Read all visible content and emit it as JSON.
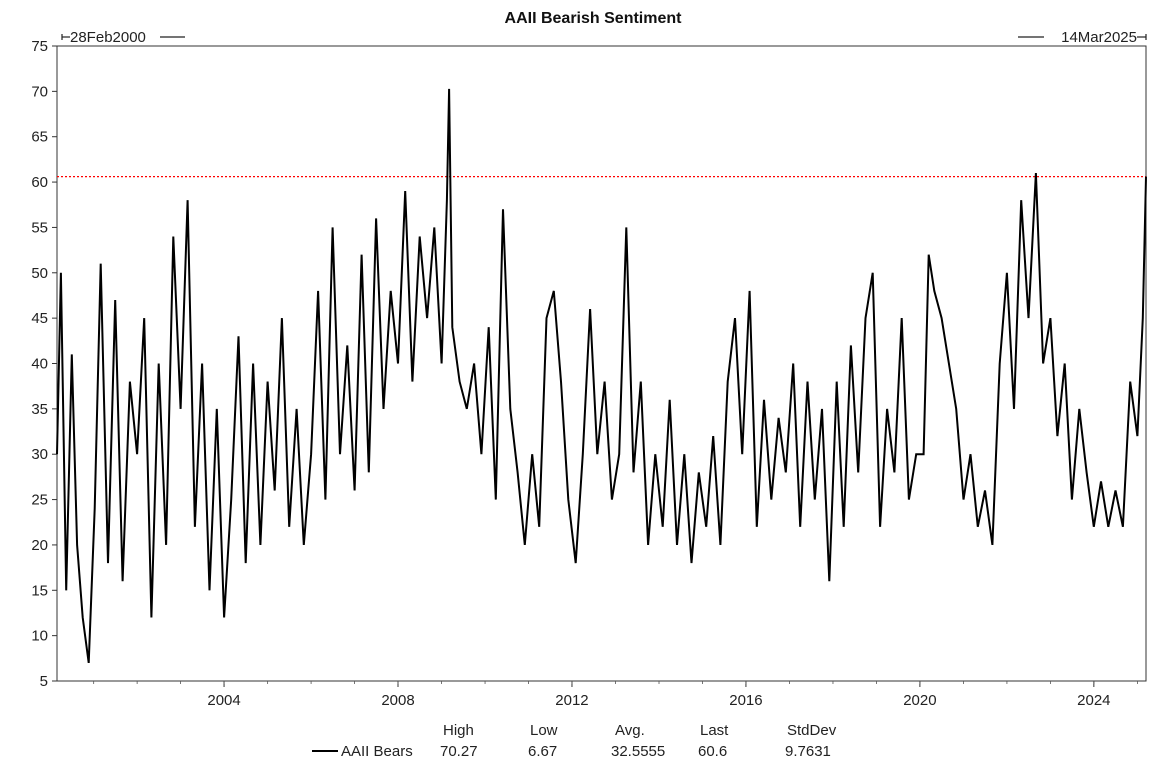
{
  "chart_data": {
    "type": "line",
    "title": "AAII Bearish Sentiment",
    "start_label": "28Feb2000",
    "end_label": "14Mar2025",
    "xlim": [
      "2000-02-28",
      "2025-03-14"
    ],
    "ylim": [
      5,
      75
    ],
    "y_ticks": [
      "75",
      "70",
      "65",
      "60",
      "55",
      "50",
      "45",
      "40",
      "35",
      "30",
      "25",
      "20",
      "15",
      "10",
      "5"
    ],
    "x_ticks": [
      "2004",
      "2008",
      "2012",
      "2016",
      "2020",
      "2024"
    ],
    "reference_line": {
      "value": 60.6,
      "color": "#ff0000",
      "style": "dotted"
    },
    "line_color": "#000000",
    "series": [
      {
        "name": "AAII Bears",
        "points": [
          [
            "2000-02-28",
            30
          ],
          [
            "2000-04-01",
            50
          ],
          [
            "2000-05-15",
            15
          ],
          [
            "2000-07-01",
            41
          ],
          [
            "2000-08-15",
            20
          ],
          [
            "2000-10-01",
            12
          ],
          [
            "2000-11-20",
            7
          ],
          [
            "2001-01-10",
            24
          ],
          [
            "2001-03-01",
            51
          ],
          [
            "2001-05-01",
            18
          ],
          [
            "2001-07-01",
            47
          ],
          [
            "2001-09-01",
            16
          ],
          [
            "2001-11-01",
            38
          ],
          [
            "2002-01-01",
            30
          ],
          [
            "2002-03-01",
            45
          ],
          [
            "2002-05-01",
            12
          ],
          [
            "2002-07-01",
            40
          ],
          [
            "2002-09-01",
            20
          ],
          [
            "2002-11-01",
            54
          ],
          [
            "2003-01-01",
            35
          ],
          [
            "2003-03-01",
            58
          ],
          [
            "2003-05-01",
            22
          ],
          [
            "2003-07-01",
            40
          ],
          [
            "2003-09-01",
            15
          ],
          [
            "2003-11-01",
            35
          ],
          [
            "2004-01-01",
            12
          ],
          [
            "2004-03-01",
            25
          ],
          [
            "2004-05-01",
            43
          ],
          [
            "2004-07-01",
            18
          ],
          [
            "2004-09-01",
            40
          ],
          [
            "2004-11-01",
            20
          ],
          [
            "2005-01-01",
            38
          ],
          [
            "2005-03-01",
            26
          ],
          [
            "2005-05-01",
            45
          ],
          [
            "2005-07-01",
            22
          ],
          [
            "2005-09-01",
            35
          ],
          [
            "2005-11-01",
            20
          ],
          [
            "2006-01-01",
            30
          ],
          [
            "2006-03-01",
            48
          ],
          [
            "2006-05-01",
            25
          ],
          [
            "2006-07-01",
            55
          ],
          [
            "2006-09-01",
            30
          ],
          [
            "2006-11-01",
            42
          ],
          [
            "2007-01-01",
            26
          ],
          [
            "2007-03-01",
            52
          ],
          [
            "2007-05-01",
            28
          ],
          [
            "2007-07-01",
            56
          ],
          [
            "2007-09-01",
            35
          ],
          [
            "2007-11-01",
            48
          ],
          [
            "2008-01-01",
            40
          ],
          [
            "2008-03-01",
            59
          ],
          [
            "2008-05-01",
            38
          ],
          [
            "2008-07-01",
            54
          ],
          [
            "2008-09-01",
            45
          ],
          [
            "2008-11-01",
            55
          ],
          [
            "2009-01-01",
            40
          ],
          [
            "2009-02-15",
            58
          ],
          [
            "2009-03-05",
            70.27
          ],
          [
            "2009-04-01",
            44
          ],
          [
            "2009-06-01",
            38
          ],
          [
            "2009-08-01",
            35
          ],
          [
            "2009-10-01",
            40
          ],
          [
            "2009-12-01",
            30
          ],
          [
            "2010-02-01",
            44
          ],
          [
            "2010-04-01",
            25
          ],
          [
            "2010-06-01",
            57
          ],
          [
            "2010-08-01",
            35
          ],
          [
            "2010-10-01",
            28
          ],
          [
            "2010-12-01",
            20
          ],
          [
            "2011-02-01",
            30
          ],
          [
            "2011-04-01",
            22
          ],
          [
            "2011-06-01",
            45
          ],
          [
            "2011-08-01",
            48
          ],
          [
            "2011-10-01",
            38
          ],
          [
            "2011-12-01",
            25
          ],
          [
            "2012-02-01",
            18
          ],
          [
            "2012-04-01",
            30
          ],
          [
            "2012-06-01",
            46
          ],
          [
            "2012-08-01",
            30
          ],
          [
            "2012-10-01",
            38
          ],
          [
            "2012-12-01",
            25
          ],
          [
            "2013-02-01",
            30
          ],
          [
            "2013-04-01",
            55
          ],
          [
            "2013-06-01",
            28
          ],
          [
            "2013-08-01",
            38
          ],
          [
            "2013-10-01",
            20
          ],
          [
            "2013-12-01",
            30
          ],
          [
            "2014-02-01",
            22
          ],
          [
            "2014-04-01",
            36
          ],
          [
            "2014-06-01",
            20
          ],
          [
            "2014-08-01",
            30
          ],
          [
            "2014-10-01",
            18
          ],
          [
            "2014-12-01",
            28
          ],
          [
            "2015-02-01",
            22
          ],
          [
            "2015-04-01",
            32
          ],
          [
            "2015-06-01",
            20
          ],
          [
            "2015-08-01",
            38
          ],
          [
            "2015-10-01",
            45
          ],
          [
            "2015-12-01",
            30
          ],
          [
            "2016-02-01",
            48
          ],
          [
            "2016-04-01",
            22
          ],
          [
            "2016-06-01",
            36
          ],
          [
            "2016-08-01",
            25
          ],
          [
            "2016-10-01",
            34
          ],
          [
            "2016-12-01",
            28
          ],
          [
            "2017-02-01",
            40
          ],
          [
            "2017-04-01",
            22
          ],
          [
            "2017-06-01",
            38
          ],
          [
            "2017-08-01",
            25
          ],
          [
            "2017-10-01",
            35
          ],
          [
            "2017-12-01",
            16
          ],
          [
            "2018-02-01",
            38
          ],
          [
            "2018-04-01",
            22
          ],
          [
            "2018-06-01",
            42
          ],
          [
            "2018-08-01",
            28
          ],
          [
            "2018-10-01",
            45
          ],
          [
            "2018-12-01",
            50
          ],
          [
            "2019-02-01",
            22
          ],
          [
            "2019-04-01",
            35
          ],
          [
            "2019-06-01",
            28
          ],
          [
            "2019-08-01",
            45
          ],
          [
            "2019-10-01",
            25
          ],
          [
            "2019-12-01",
            30
          ],
          [
            "2020-02-01",
            30
          ],
          [
            "2020-03-15",
            52
          ],
          [
            "2020-05-01",
            48
          ],
          [
            "2020-07-01",
            45
          ],
          [
            "2020-09-01",
            40
          ],
          [
            "2020-11-01",
            35
          ],
          [
            "2021-01-01",
            25
          ],
          [
            "2021-03-01",
            30
          ],
          [
            "2021-05-01",
            22
          ],
          [
            "2021-07-01",
            26
          ],
          [
            "2021-09-01",
            20
          ],
          [
            "2021-11-01",
            40
          ],
          [
            "2022-01-01",
            50
          ],
          [
            "2022-03-01",
            35
          ],
          [
            "2022-05-01",
            58
          ],
          [
            "2022-07-01",
            45
          ],
          [
            "2022-09-01",
            61
          ],
          [
            "2022-11-01",
            40
          ],
          [
            "2023-01-01",
            45
          ],
          [
            "2023-03-01",
            32
          ],
          [
            "2023-05-01",
            40
          ],
          [
            "2023-07-01",
            25
          ],
          [
            "2023-09-01",
            35
          ],
          [
            "2023-11-01",
            28
          ],
          [
            "2024-01-01",
            22
          ],
          [
            "2024-03-01",
            27
          ],
          [
            "2024-05-01",
            22
          ],
          [
            "2024-07-01",
            26
          ],
          [
            "2024-09-01",
            22
          ],
          [
            "2024-11-01",
            38
          ],
          [
            "2025-01-01",
            32
          ],
          [
            "2025-02-15",
            45
          ],
          [
            "2025-03-14",
            60.6
          ]
        ]
      }
    ],
    "legend": {
      "series_label": "AAII Bears",
      "headers": [
        "High",
        "Low",
        "Avg.",
        "Last",
        "StdDev"
      ],
      "values": [
        "70.27",
        "6.67",
        "32.5555",
        "60.6",
        "9.7631"
      ]
    }
  }
}
